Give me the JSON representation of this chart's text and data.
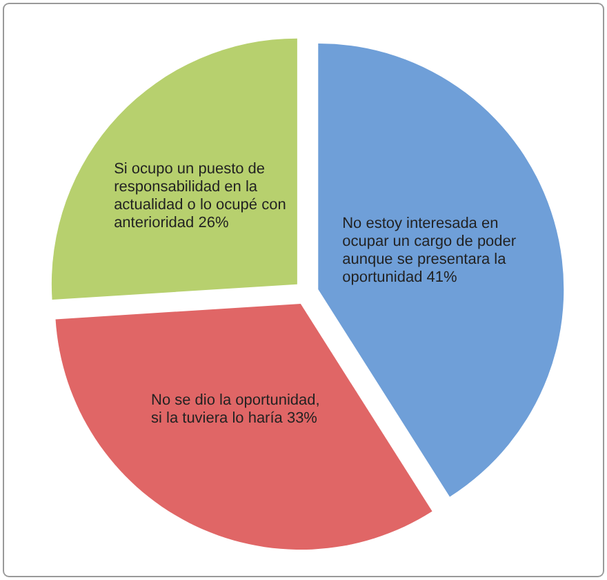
{
  "chart_data": {
    "type": "pie",
    "categories": [
      "No estoy interesada en ocupar un cargo de poder aunque se presentara la oportunidad",
      "No se dio la oportunidad, si la tuviera lo haría",
      "Si ocupo un puesto de responsabilidad en la actualidad o lo ocupé con anterioridad"
    ],
    "values": [
      41,
      33,
      26
    ],
    "value_labels": [
      "41%",
      "33%",
      "26%"
    ],
    "colors": [
      "#6f9fd8",
      "#e06666",
      "#b7d06e"
    ]
  }
}
